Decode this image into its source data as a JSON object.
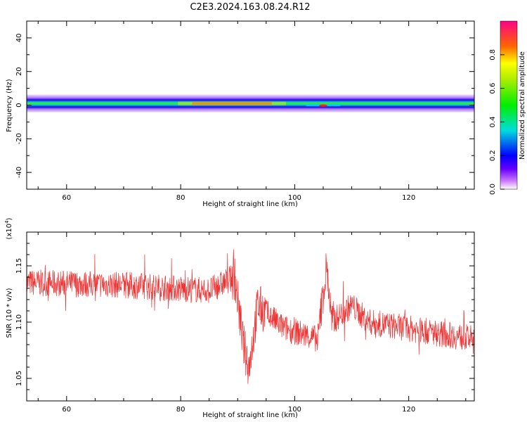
{
  "figure_title": "C2E3.2024.163.08.24.R12",
  "colorbar": {
    "label": "Normalized spectral amplitude",
    "ticks": [
      "0.0",
      "0.2",
      "0.4",
      "0.6",
      "0.8"
    ]
  },
  "chart_data": [
    {
      "type": "heatmap",
      "xlabel": "Height of straight line (km)",
      "ylabel": "Frequency (Hz)",
      "xlim": [
        53,
        131.5
      ],
      "ylim": [
        -50,
        50
      ],
      "xticks": [
        "60",
        "80",
        "100",
        "120"
      ],
      "yticks": [
        "40",
        "20",
        "0",
        "-20",
        "-40"
      ],
      "band": {
        "center_hz": 1,
        "half_width_hz": 4,
        "peak_x_km": [
          82,
          96
        ],
        "dip_x_km": [
          102,
          108
        ]
      },
      "colorscale": "rainbow (magenta→blue→cyan→green→yellow→red)"
    },
    {
      "type": "line",
      "xlabel": "Height of straight line (km)",
      "ylabel": "SNR (10 * v/v)",
      "y_multiplier": "(x10^4)",
      "xlim": [
        53,
        131.5
      ],
      "ylim": [
        1.03,
        1.18
      ],
      "xticks": [
        "60",
        "80",
        "100",
        "120"
      ],
      "yticks": [
        "1.15",
        "1.10",
        "1.05"
      ],
      "series": [
        {
          "color": "#ee3333",
          "trend": [
            {
              "x": 53,
              "y": 1.135
            },
            {
              "x": 70,
              "y": 1.133
            },
            {
              "x": 85,
              "y": 1.128
            },
            {
              "x": 89.5,
              "y": 1.14
            },
            {
              "x": 91,
              "y": 1.08
            },
            {
              "x": 92,
              "y": 1.06
            },
            {
              "x": 93.5,
              "y": 1.115
            },
            {
              "x": 98,
              "y": 1.095
            },
            {
              "x": 104,
              "y": 1.085
            },
            {
              "x": 105.6,
              "y": 1.15
            },
            {
              "x": 106.5,
              "y": 1.1
            },
            {
              "x": 110,
              "y": 1.115
            },
            {
              "x": 113,
              "y": 1.1
            },
            {
              "x": 131.5,
              "y": 1.085
            }
          ]
        }
      ]
    }
  ]
}
